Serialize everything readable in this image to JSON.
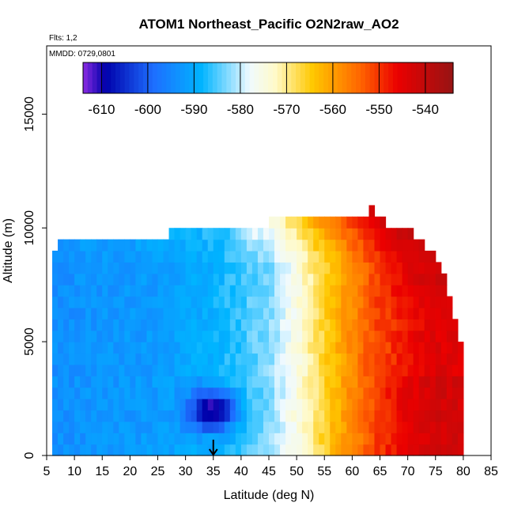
{
  "chart_data": {
    "type": "heatmap",
    "title": "ATOM1 Northeast_Pacific O2N2raw_AO2",
    "subtitle_flights": "Flts: 1,2",
    "subtitle_dates": "MMDD: 0729,0801",
    "xlabel": "Latitude (deg N)",
    "ylabel": "Altitude (m)",
    "xlim": [
      5,
      85
    ],
    "ylim": [
      0,
      18000
    ],
    "x_ticks": [
      5,
      10,
      15,
      20,
      25,
      30,
      35,
      40,
      45,
      50,
      55,
      60,
      65,
      70,
      75,
      80,
      85
    ],
    "y_ticks": [
      0,
      5000,
      10000,
      15000
    ],
    "colorbar": {
      "range": [
        -614,
        -534
      ],
      "ticks": [
        -610,
        -600,
        -590,
        -580,
        -570,
        -560,
        -550,
        -540
      ],
      "placement": "top-inside"
    },
    "marker": {
      "latitude": 35,
      "symbol": "down-arrow"
    },
    "grid": false,
    "cell_size": {
      "latitude_deg": 1,
      "altitude_m": 500
    },
    "value_model": {
      "description": "Latitude-altitude field of O2N2raw_AO2; values estimated from the color scale",
      "upper_boundary": [
        [
          5,
          0
        ],
        [
          6,
          9000
        ],
        [
          7,
          9500
        ],
        [
          27,
          9500
        ],
        [
          27,
          10000
        ],
        [
          45,
          10000
        ],
        [
          45,
          10500
        ],
        [
          63,
          10500
        ],
        [
          63,
          11000
        ],
        [
          64,
          11000
        ],
        [
          64,
          10500
        ],
        [
          66,
          10500
        ],
        [
          66,
          10000
        ],
        [
          71,
          10000
        ],
        [
          71,
          9500
        ],
        [
          73,
          9500
        ],
        [
          73,
          9000
        ],
        [
          75,
          9000
        ],
        [
          75,
          8500
        ],
        [
          76,
          8500
        ],
        [
          76,
          8000
        ],
        [
          77,
          8000
        ],
        [
          77,
          7000
        ],
        [
          78,
          7000
        ],
        [
          78,
          6000
        ],
        [
          79,
          6000
        ],
        [
          79,
          5000
        ],
        [
          80,
          5000
        ],
        [
          80,
          500
        ]
      ],
      "base_by_latitude": [
        [
          5,
          -594
        ],
        [
          25,
          -592
        ],
        [
          35,
          -589
        ],
        [
          45,
          -583
        ],
        [
          50,
          -575
        ],
        [
          55,
          -566
        ],
        [
          60,
          -558
        ],
        [
          65,
          -550
        ],
        [
          70,
          -545
        ],
        [
          75,
          -542
        ],
        [
          80,
          -543
        ]
      ],
      "low_anomaly": {
        "lat": 35,
        "alt": 2000,
        "value": -612
      }
    }
  }
}
